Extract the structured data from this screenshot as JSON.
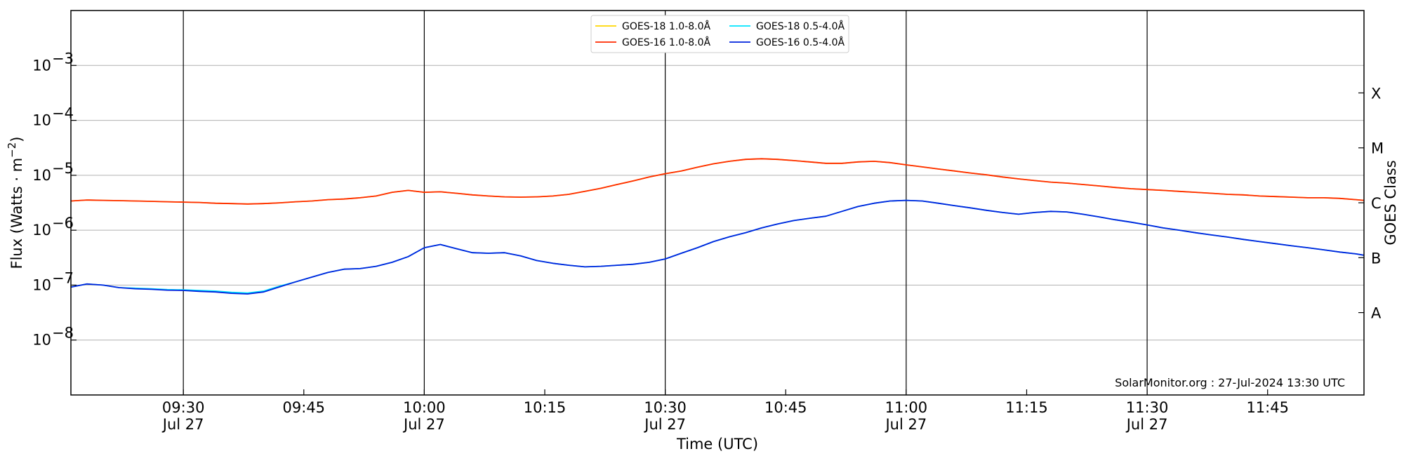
{
  "chart_data": {
    "type": "line",
    "title": "",
    "xlabel": "Time (UTC)",
    "ylabel": "Flux (Watts · m⁻²)",
    "y2label": "GOES Class",
    "yscale": "log",
    "ylim": [
      1e-09,
      0.01
    ],
    "xlim": [
      "09:16",
      "11:57"
    ],
    "grid": "horizontal",
    "legend_position": "top-center",
    "credit": "SolarMonitor.org : 27-Jul-2024 13:30 UTC",
    "x_ticks": [
      {
        "value": "09:30",
        "label": "09:30",
        "date": "Jul 27"
      },
      {
        "value": "09:45",
        "label": "09:45",
        "date": ""
      },
      {
        "value": "10:00",
        "label": "10:00",
        "date": "Jul 27"
      },
      {
        "value": "10:15",
        "label": "10:15",
        "date": ""
      },
      {
        "value": "10:30",
        "label": "10:30",
        "date": "Jul 27"
      },
      {
        "value": "10:45",
        "label": "10:45",
        "date": ""
      },
      {
        "value": "11:00",
        "label": "11:00",
        "date": "Jul 27"
      },
      {
        "value": "11:15",
        "label": "11:15",
        "date": ""
      },
      {
        "value": "11:30",
        "label": "11:30",
        "date": "Jul 27"
      },
      {
        "value": "11:45",
        "label": "11:45",
        "date": ""
      }
    ],
    "vlines": [
      "09:30",
      "10:00",
      "10:30",
      "11:00",
      "11:30"
    ],
    "y_ticks": [
      {
        "value": 1e-08,
        "label": "10",
        "exp": "−8"
      },
      {
        "value": 1e-07,
        "label": "10",
        "exp": "−7"
      },
      {
        "value": 1e-06,
        "label": "10",
        "exp": "−6"
      },
      {
        "value": 1e-05,
        "label": "10",
        "exp": "−5"
      },
      {
        "value": 0.0001,
        "label": "10",
        "exp": "−4"
      },
      {
        "value": 0.001,
        "label": "10",
        "exp": "−3"
      }
    ],
    "goes_classes": [
      {
        "label": "A",
        "value": 3.16e-08
      },
      {
        "label": "B",
        "value": 3.16e-07
      },
      {
        "label": "C",
        "value": 3.16e-06
      },
      {
        "label": "M",
        "value": 3.16e-05
      },
      {
        "label": "X",
        "value": 0.000316
      }
    ],
    "x": [
      "09:16",
      "09:18",
      "09:20",
      "09:22",
      "09:24",
      "09:26",
      "09:28",
      "09:30",
      "09:32",
      "09:34",
      "09:36",
      "09:38",
      "09:40",
      "09:42",
      "09:44",
      "09:46",
      "09:48",
      "09:50",
      "09:52",
      "09:54",
      "09:56",
      "09:58",
      "10:00",
      "10:02",
      "10:04",
      "10:06",
      "10:08",
      "10:10",
      "10:12",
      "10:14",
      "10:16",
      "10:18",
      "10:20",
      "10:22",
      "10:24",
      "10:26",
      "10:28",
      "10:30",
      "10:32",
      "10:34",
      "10:36",
      "10:38",
      "10:40",
      "10:42",
      "10:44",
      "10:46",
      "10:48",
      "10:50",
      "10:52",
      "10:54",
      "10:56",
      "10:58",
      "11:00",
      "11:02",
      "11:04",
      "11:06",
      "11:08",
      "11:10",
      "11:12",
      "11:14",
      "11:16",
      "11:18",
      "11:20",
      "11:22",
      "11:24",
      "11:26",
      "11:28",
      "11:30",
      "11:32",
      "11:34",
      "11:36",
      "11:38",
      "11:40",
      "11:42",
      "11:44",
      "11:46",
      "11:48",
      "11:50",
      "11:52",
      "11:54",
      "11:56",
      "11:57"
    ],
    "series": [
      {
        "name": "GOES-18 1.0-8.0Å",
        "color": "#ffd700",
        "values": [
          3.4e-06,
          3.55e-06,
          3.5e-06,
          3.45e-06,
          3.4e-06,
          3.35e-06,
          3.3e-06,
          3.25e-06,
          3.2e-06,
          3.1e-06,
          3.05e-06,
          3e-06,
          3.05e-06,
          3.15e-06,
          3.3e-06,
          3.4e-06,
          3.6e-06,
          3.7e-06,
          3.9e-06,
          4.2e-06,
          4.9e-06,
          5.3e-06,
          4.9e-06,
          5e-06,
          4.7e-06,
          4.4e-06,
          4.2e-06,
          4.05e-06,
          4e-06,
          4.05e-06,
          4.2e-06,
          4.5e-06,
          5.1e-06,
          5.8e-06,
          6.8e-06,
          7.9e-06,
          9.3e-06,
          1.07e-05,
          1.2e-05,
          1.4e-05,
          1.62e-05,
          1.8e-05,
          1.95e-05,
          2e-05,
          1.95e-05,
          1.85e-05,
          1.75e-05,
          1.65e-05,
          1.65e-05,
          1.75e-05,
          1.8e-05,
          1.7e-05,
          1.55e-05,
          1.42e-05,
          1.3e-05,
          1.2e-05,
          1.1e-05,
          1.02e-05,
          9.3e-06,
          8.6e-06,
          8e-06,
          7.5e-06,
          7.2e-06,
          6.8e-06,
          6.4e-06,
          6e-06,
          5.7e-06,
          5.5e-06,
          5.3e-06,
          5.1e-06,
          4.9e-06,
          4.7e-06,
          4.5e-06,
          4.4e-06,
          4.2e-06,
          4.1e-06,
          4e-06,
          3.9e-06,
          3.9e-06,
          3.8e-06,
          3.6e-06,
          3.5e-06
        ]
      },
      {
        "name": "GOES-18 0.5-4.0Å",
        "color": "#00e5ff",
        "values": [
          9.2e-08,
          1.05e-07,
          1e-07,
          9e-08,
          8.8e-08,
          8.6e-08,
          8.3e-08,
          8.2e-08,
          8e-08,
          7.8e-08,
          7.4e-08,
          7.2e-08,
          7.8e-08,
          9.6e-08,
          1.15e-07,
          1.4e-07,
          1.7e-07,
          1.95e-07,
          2e-07,
          2.2e-07,
          2.6e-07,
          3.3e-07,
          4.8e-07,
          5.5e-07,
          4.6e-07,
          3.9e-07,
          3.8e-07,
          3.9e-07,
          3.4e-07,
          2.8e-07,
          2.5e-07,
          2.3e-07,
          2.15e-07,
          2.2e-07,
          2.3e-07,
          2.4e-07,
          2.6e-07,
          3e-07,
          3.8e-07,
          4.8e-07,
          6.2e-07,
          7.6e-07,
          9e-07,
          1.1e-06,
          1.3e-06,
          1.5e-06,
          1.65e-06,
          1.8e-06,
          2.2e-06,
          2.7e-06,
          3.1e-06,
          3.4e-06,
          3.5e-06,
          3.4e-06,
          3.1e-06,
          2.8e-06,
          2.55e-06,
          2.3e-06,
          2.1e-06,
          1.95e-06,
          2.1e-06,
          2.2e-06,
          2.15e-06,
          1.95e-06,
          1.75e-06,
          1.55e-06,
          1.4e-06,
          1.25e-06,
          1.1e-06,
          1e-06,
          9e-07,
          8.2e-07,
          7.5e-07,
          6.8e-07,
          6.2e-07,
          5.7e-07,
          5.2e-07,
          4.8e-07,
          4.4e-07,
          4e-07,
          3.7e-07,
          3.5e-07
        ]
      },
      {
        "name": "GOES-16 1.0-8.0Å",
        "color": "#ff2a00",
        "values": [
          3.4e-06,
          3.55e-06,
          3.5e-06,
          3.45e-06,
          3.4e-06,
          3.35e-06,
          3.3e-06,
          3.25e-06,
          3.2e-06,
          3.1e-06,
          3.05e-06,
          3e-06,
          3.05e-06,
          3.15e-06,
          3.3e-06,
          3.4e-06,
          3.6e-06,
          3.7e-06,
          3.9e-06,
          4.2e-06,
          4.9e-06,
          5.3e-06,
          4.9e-06,
          5e-06,
          4.7e-06,
          4.4e-06,
          4.2e-06,
          4.05e-06,
          4e-06,
          4.05e-06,
          4.2e-06,
          4.5e-06,
          5.1e-06,
          5.8e-06,
          6.8e-06,
          7.9e-06,
          9.3e-06,
          1.07e-05,
          1.2e-05,
          1.4e-05,
          1.62e-05,
          1.8e-05,
          1.95e-05,
          2e-05,
          1.95e-05,
          1.85e-05,
          1.75e-05,
          1.65e-05,
          1.65e-05,
          1.75e-05,
          1.8e-05,
          1.7e-05,
          1.55e-05,
          1.42e-05,
          1.3e-05,
          1.2e-05,
          1.1e-05,
          1.02e-05,
          9.3e-06,
          8.6e-06,
          8e-06,
          7.5e-06,
          7.2e-06,
          6.8e-06,
          6.4e-06,
          6e-06,
          5.7e-06,
          5.5e-06,
          5.3e-06,
          5.1e-06,
          4.9e-06,
          4.7e-06,
          4.5e-06,
          4.4e-06,
          4.2e-06,
          4.1e-06,
          4e-06,
          3.9e-06,
          3.9e-06,
          3.8e-06,
          3.6e-06,
          3.5e-06
        ]
      },
      {
        "name": "GOES-16 0.5-4.0Å",
        "color": "#0022dd",
        "values": [
          9.2e-08,
          1.05e-07,
          1e-07,
          9e-08,
          8.6e-08,
          8.4e-08,
          8.1e-08,
          8e-08,
          7.7e-08,
          7.5e-08,
          7.1e-08,
          6.9e-08,
          7.5e-08,
          9.3e-08,
          1.15e-07,
          1.4e-07,
          1.7e-07,
          1.95e-07,
          2e-07,
          2.2e-07,
          2.6e-07,
          3.3e-07,
          4.8e-07,
          5.5e-07,
          4.6e-07,
          3.9e-07,
          3.8e-07,
          3.9e-07,
          3.4e-07,
          2.8e-07,
          2.5e-07,
          2.3e-07,
          2.15e-07,
          2.2e-07,
          2.3e-07,
          2.4e-07,
          2.6e-07,
          3e-07,
          3.8e-07,
          4.8e-07,
          6.2e-07,
          7.6e-07,
          9e-07,
          1.1e-06,
          1.3e-06,
          1.5e-06,
          1.65e-06,
          1.8e-06,
          2.2e-06,
          2.7e-06,
          3.1e-06,
          3.4e-06,
          3.5e-06,
          3.4e-06,
          3.1e-06,
          2.8e-06,
          2.55e-06,
          2.3e-06,
          2.1e-06,
          1.95e-06,
          2.1e-06,
          2.2e-06,
          2.15e-06,
          1.95e-06,
          1.75e-06,
          1.55e-06,
          1.4e-06,
          1.25e-06,
          1.1e-06,
          1e-06,
          9e-07,
          8.2e-07,
          7.5e-07,
          6.8e-07,
          6.2e-07,
          5.7e-07,
          5.2e-07,
          4.8e-07,
          4.4e-07,
          4e-07,
          3.7e-07,
          3.5e-07
        ]
      }
    ]
  }
}
